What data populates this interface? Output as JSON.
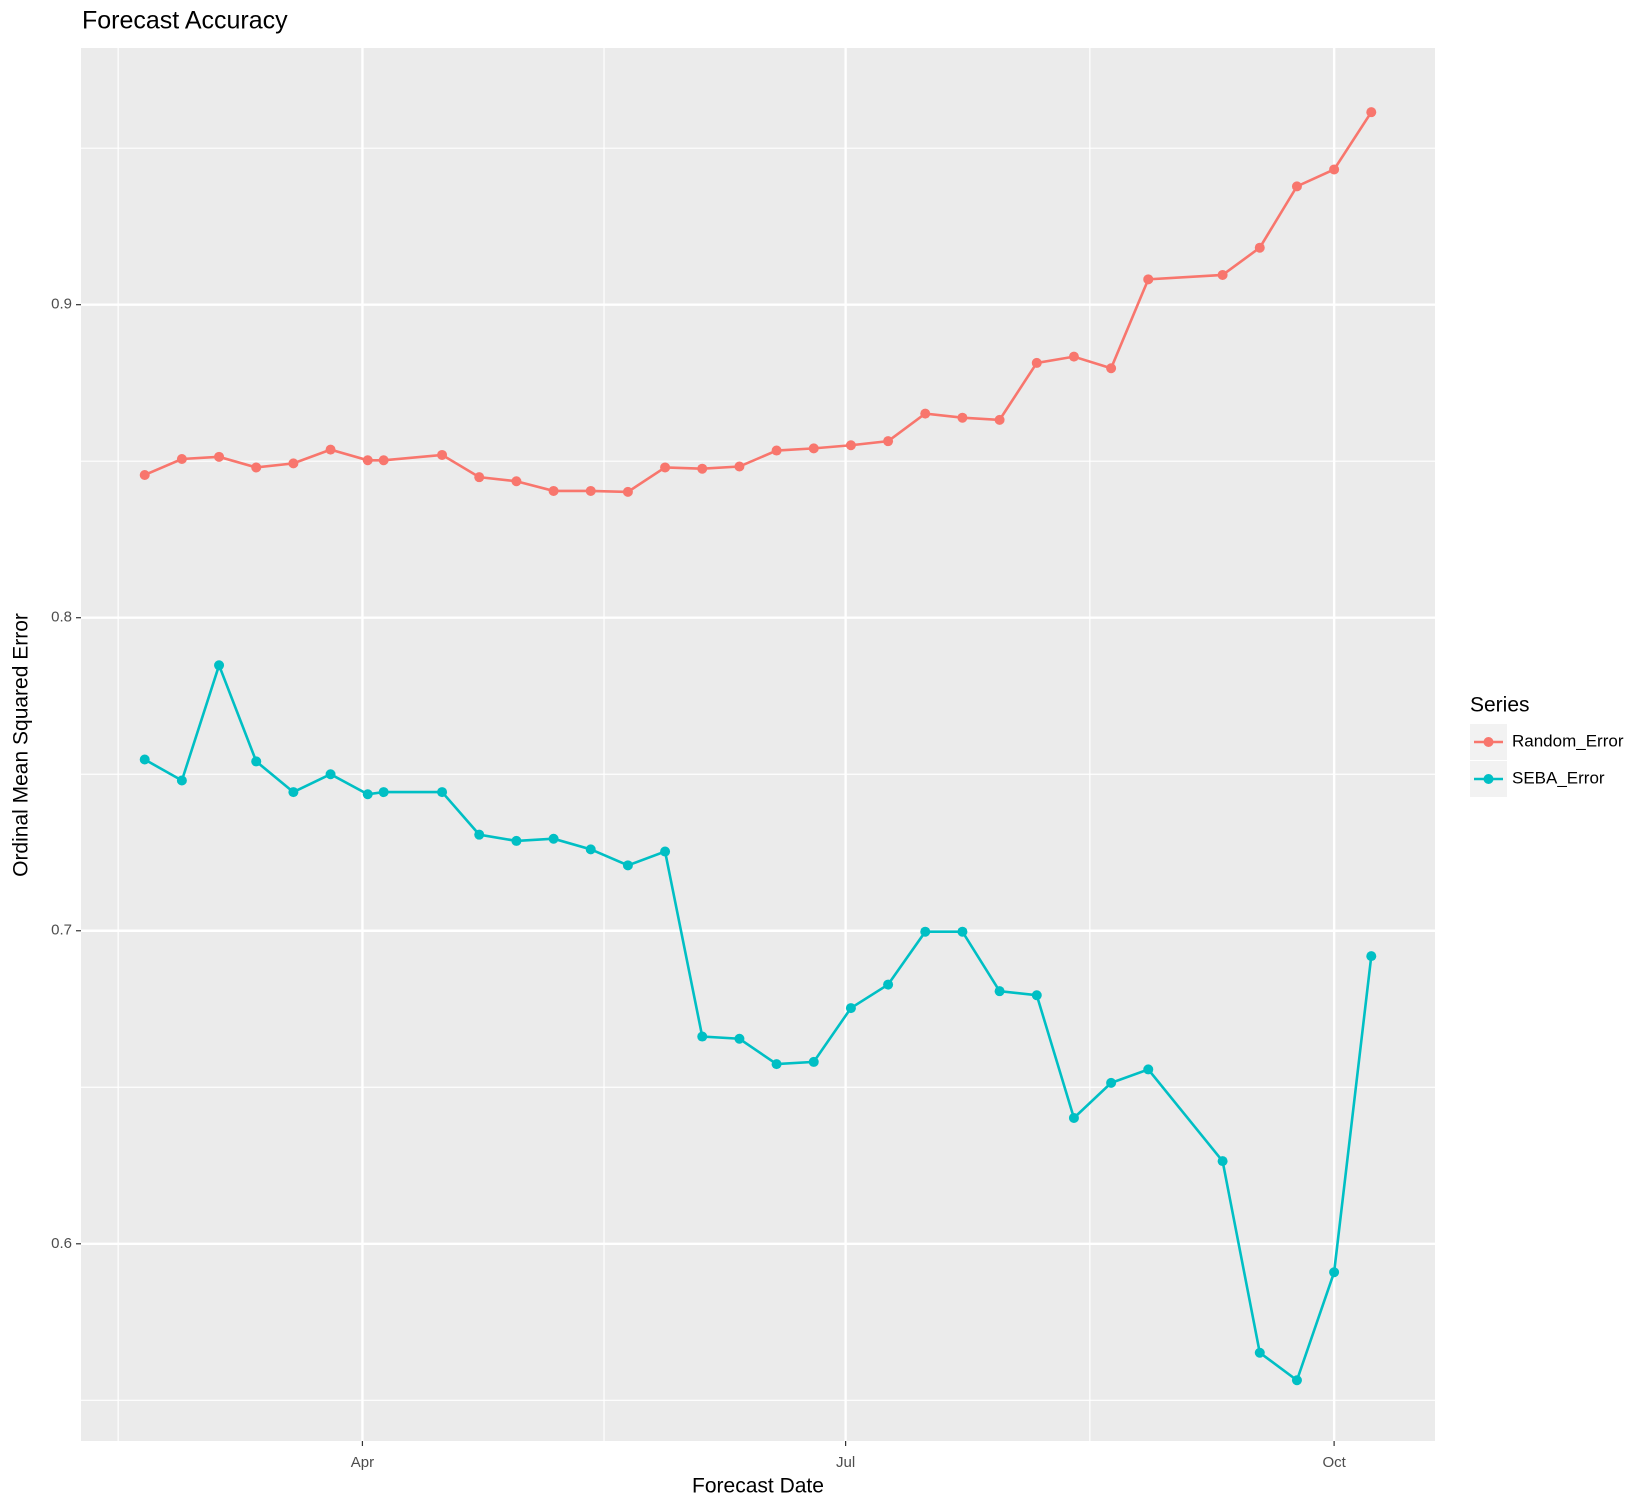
{
  "chart_data": {
    "type": "line",
    "title": "Forecast Accuracy",
    "x_label": "Forecast Date",
    "y_label": "Ordinal Mean Squared Error",
    "legend_title": "Series",
    "legend": "right",
    "grid": true,
    "x": [
      50,
      57,
      64,
      71,
      78,
      85,
      92,
      95,
      106,
      113,
      120,
      127,
      134,
      141,
      148,
      155,
      162,
      169,
      176,
      183,
      190,
      197,
      204,
      211,
      218,
      225,
      232,
      239,
      253,
      260,
      267,
      274,
      281
    ],
    "xlim": [
      38,
      293
    ],
    "xticks": [
      {
        "value": 91,
        "label": "Apr"
      },
      {
        "value": 182,
        "label": "Jul"
      },
      {
        "value": 274,
        "label": "Oct"
      }
    ],
    "xminor": [
      45,
      136.5,
      228
    ],
    "ylim": [
      0.537,
      0.982
    ],
    "yticks": [
      0.6,
      0.7,
      0.8,
      0.9
    ],
    "yminor": [
      0.55,
      0.65,
      0.75,
      0.85,
      0.95
    ],
    "series": [
      {
        "name": "Random_Error",
        "color": "#f8766d",
        "values": [
          0.8456,
          0.8507,
          0.8514,
          0.848,
          0.8493,
          0.8537,
          0.8503,
          0.8503,
          0.852,
          0.8449,
          0.8436,
          0.8405,
          0.8405,
          0.8402,
          0.848,
          0.8476,
          0.8483,
          0.8534,
          0.8541,
          0.8551,
          0.8564,
          0.8652,
          0.8639,
          0.8632,
          0.8814,
          0.8834,
          0.8797,
          0.9081,
          0.9095,
          0.9182,
          0.9378,
          0.9432,
          0.9615
        ]
      },
      {
        "name": "SEBA_Error",
        "color": "#00bfc4",
        "values": [
          0.7547,
          0.748,
          0.7848,
          0.7541,
          0.7443,
          0.75,
          0.7436,
          0.7443,
          0.7443,
          0.7307,
          0.7287,
          0.7294,
          0.726,
          0.7209,
          0.7253,
          0.6662,
          0.6655,
          0.6574,
          0.6581,
          0.6753,
          0.6828,
          0.6997,
          0.6997,
          0.6807,
          0.6794,
          0.6402,
          0.6514,
          0.6557,
          0.6264,
          0.5652,
          0.5564,
          0.5909,
          0.6919
        ]
      }
    ]
  }
}
